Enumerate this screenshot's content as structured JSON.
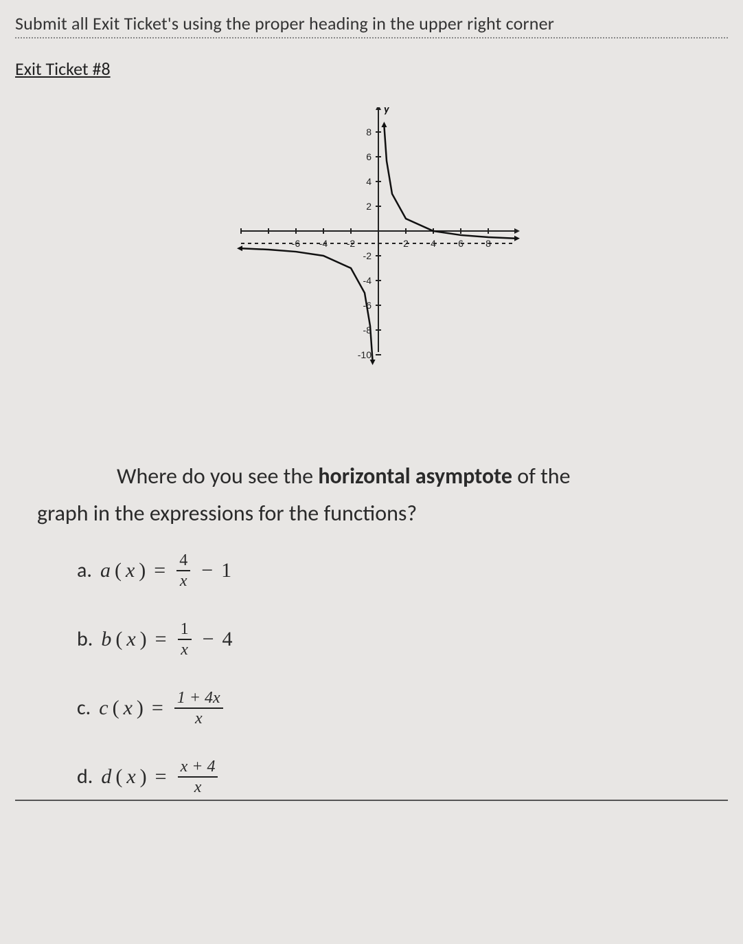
{
  "header": {
    "instruction": "Submit all Exit Ticket's using the proper heading in the upper right corner",
    "title": "Exit Ticket #8"
  },
  "chart": {
    "type": "line",
    "background_color": "#e8e6e4",
    "axis_color": "#222222",
    "curve_color": "#111111",
    "dashed_color": "#222222",
    "xlim": [
      -10,
      10
    ],
    "ylim": [
      -10,
      10
    ],
    "x_ticks": [
      -10,
      -8,
      -6,
      -4,
      -2,
      2,
      4,
      6,
      8
    ],
    "y_ticks": [
      -10,
      -8,
      -6,
      -4,
      -2,
      2,
      4,
      6,
      8
    ],
    "y_tick_labels": [
      "-10",
      "-8",
      "-6",
      "-4",
      "-2",
      "2",
      "4",
      "6",
      "8"
    ],
    "x_tick_labels_shown": [
      -6,
      -4,
      -2,
      2,
      4,
      6,
      8
    ],
    "horizontal_asymptote": -1,
    "vertical_asymptote": 0,
    "y_axis_label": "y",
    "function": "4/x - 1",
    "curve_left": [
      {
        "x": -10,
        "y": -1.4
      },
      {
        "x": -8,
        "y": -1.5
      },
      {
        "x": -6,
        "y": -1.67
      },
      {
        "x": -4,
        "y": -2.0
      },
      {
        "x": -2,
        "y": -3.0
      },
      {
        "x": -1,
        "y": -5.0
      },
      {
        "x": -0.6,
        "y": -7.67
      },
      {
        "x": -0.42,
        "y": -10.5
      }
    ],
    "curve_right": [
      {
        "x": 0.42,
        "y": 8.5
      },
      {
        "x": 0.6,
        "y": 5.67
      },
      {
        "x": 1,
        "y": 3.0
      },
      {
        "x": 2,
        "y": 1.0
      },
      {
        "x": 4,
        "y": 0.0
      },
      {
        "x": 6,
        "y": -0.33
      },
      {
        "x": 8,
        "y": -0.5
      },
      {
        "x": 10,
        "y": -0.6
      }
    ],
    "label_fontsize": 14,
    "line_width": 2.5
  },
  "question": {
    "line1_pre": "Where do you see the ",
    "line1_bold": "horizontal asymptote",
    "line1_post": " of the",
    "line2": "graph in the expressions for the functions?"
  },
  "choices": {
    "a": {
      "letter": "a.",
      "fn": "a",
      "var": "x",
      "num": "4",
      "den": "x",
      "op": "−",
      "tail": "1"
    },
    "b": {
      "letter": "b.",
      "fn": "b",
      "var": "x",
      "num": "1",
      "den": "x",
      "op": "−",
      "tail": "4"
    },
    "c": {
      "letter": "c.",
      "fn": "c",
      "var": "x",
      "num": "1 + 4x",
      "den": "x"
    },
    "d": {
      "letter": "d.",
      "fn": "d",
      "var": "x",
      "num": "x + 4",
      "den": "x"
    }
  }
}
